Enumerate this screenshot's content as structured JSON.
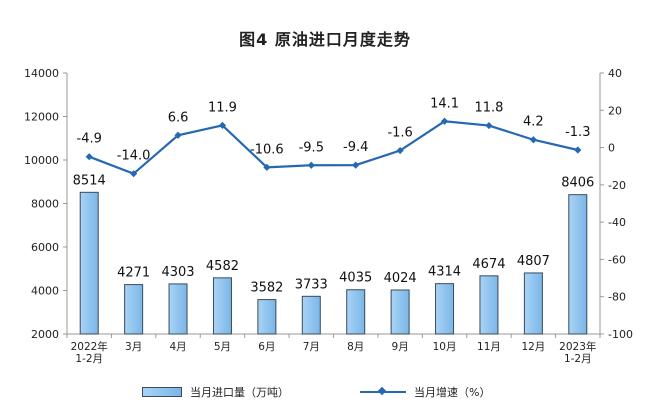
{
  "title": "图4  原油进口月度走势",
  "chart_data": {
    "type": "bar+line",
    "categories": [
      [
        "2022年",
        "1-2月"
      ],
      [
        "3月"
      ],
      [
        "4月"
      ],
      [
        "5月"
      ],
      [
        "6月"
      ],
      [
        "7月"
      ],
      [
        "8月"
      ],
      [
        "9月"
      ],
      [
        "10月"
      ],
      [
        "11月"
      ],
      [
        "12月"
      ],
      [
        "2023年",
        "1-2月"
      ]
    ],
    "series": [
      {
        "name": "当月进口量（万吨）",
        "type": "bar",
        "axis": "left",
        "values": [
          8514,
          4271,
          4303,
          4582,
          3582,
          3733,
          4035,
          4024,
          4314,
          4674,
          4807,
          8406
        ]
      },
      {
        "name": "当月增速（%）",
        "type": "line",
        "axis": "right",
        "values": [
          -4.9,
          -14.0,
          6.6,
          11.9,
          -10.6,
          -9.5,
          -9.4,
          -1.6,
          14.1,
          11.8,
          4.2,
          -1.3
        ]
      }
    ],
    "bar_labels": [
      "8514",
      "4271",
      "4303",
      "4582",
      "3582",
      "3733",
      "4035",
      "4024",
      "4314",
      "4674",
      "4807",
      "8406"
    ],
    "line_labels": [
      "-4.9",
      "-14.0",
      "6.6",
      "11.9",
      "-10.6",
      "-9.5",
      "-9.4",
      "-1.6",
      "14.1",
      "11.8",
      "4.2",
      "-1.3"
    ],
    "y_left": {
      "range": [
        2000,
        14000
      ],
      "ticks": [
        "2000",
        "4000",
        "6000",
        "8000",
        "10000",
        "12000",
        "14000"
      ]
    },
    "y_right": {
      "range": [
        -100,
        40
      ],
      "ticks": [
        "-100",
        "-80",
        "-60",
        "-40",
        "-20",
        "0",
        "20",
        "40"
      ]
    },
    "grid": false,
    "legend_position": "bottom",
    "colors": {
      "bar_fill_light": "#a9d3f5",
      "bar_fill_dark": "#7ab6e8",
      "bar_stroke": "#3a4a5a",
      "line": "#2668b4"
    }
  }
}
